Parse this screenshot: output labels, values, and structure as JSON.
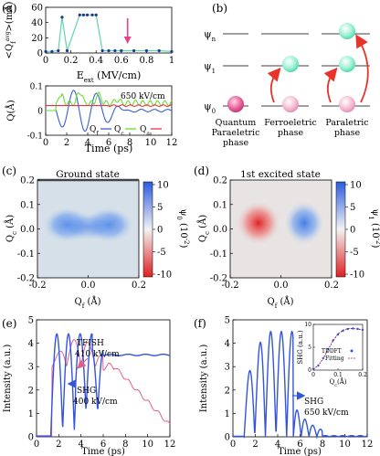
{
  "labels": {
    "a": "(a)",
    "b": "(b)",
    "c": "(c)",
    "d": "(d)",
    "e": "(e)",
    "f": "(f)"
  },
  "panel_b": {
    "psi_n": "ψn",
    "psi_1": "ψ1",
    "psi_0": "ψ0",
    "phases": [
      {
        "line1": "Quantum",
        "line2": "Paraeletric",
        "line3": "phase"
      },
      {
        "line1": "Ferroeletric",
        "line2": "phase"
      },
      {
        "line1": "Paraletric",
        "line2": "phase"
      }
    ],
    "colors": {
      "ground": "#e65a94",
      "excited": "#56e0b4",
      "arrow": "#e8332a"
    }
  },
  "panel_c": {
    "title": "Ground state",
    "cbar_label": "ψ0 (10⁻²)"
  },
  "panel_d": {
    "title": "1st excited state",
    "cbar_label": "ψ1 (10⁻²)"
  },
  "chart_data": [
    {
      "panel": "a-top",
      "type": "line",
      "xlabel": "Eext (MV/cm)",
      "ylabel": "<Qf_avg> (mÅ)",
      "xlim": [
        0,
        1.0
      ],
      "ylim": [
        0,
        60
      ],
      "xticks": [
        0,
        0.2,
        0.4,
        0.6,
        0.8,
        1.0
      ],
      "yticks": [
        0,
        20,
        40,
        60
      ],
      "x": [
        0.0,
        0.05,
        0.1,
        0.13,
        0.17,
        0.27,
        0.3,
        0.33,
        0.37,
        0.4,
        0.45,
        0.5,
        0.55,
        0.6,
        0.7,
        0.8,
        0.9,
        1.0
      ],
      "values": [
        2,
        2,
        3,
        47,
        3,
        50,
        50,
        50,
        50,
        50,
        3,
        3,
        3,
        3,
        3,
        3,
        3,
        2
      ],
      "arrow_x": 0.65,
      "colors": {
        "line": "#5fd3b3",
        "marker": "#1f3a93",
        "arrow": "#e6418a"
      }
    },
    {
      "panel": "a-bottom",
      "type": "line",
      "xlabel": "Time (ps)",
      "ylabel": "Q(Å)",
      "xlim": [
        0,
        12
      ],
      "ylim": [
        -0.1,
        0.1
      ],
      "xticks": [
        0,
        2,
        4,
        6,
        8,
        10,
        12
      ],
      "yticks": [
        -0.1,
        0.0,
        0.1
      ],
      "annotation": "650 kV/cm",
      "legend": {
        "items": [
          "Qf",
          "Qc",
          "Qa"
        ],
        "position": "bottom-right"
      },
      "series": [
        {
          "name": "Qf",
          "color": "#3a5fcd"
        },
        {
          "name": "Qc",
          "color": "#66dd33"
        },
        {
          "name": "Qa",
          "color": "#e8334a"
        }
      ]
    },
    {
      "panel": "c",
      "type": "heatmap",
      "xlabel": "Qf (Å)",
      "ylabel": "Qc (Å)",
      "xlim": [
        -0.2,
        0.2
      ],
      "ylim": [
        -0.2,
        0.2
      ],
      "xticks": [
        -0.2,
        0.0,
        0.2
      ],
      "yticks": [
        -0.2,
        -0.1,
        0.0,
        0.1,
        0.2
      ],
      "cbar_ticks": [
        10,
        5,
        0,
        -5,
        -10
      ]
    },
    {
      "panel": "d",
      "type": "heatmap",
      "xlabel": "Qf (Å)",
      "ylabel": "Qc (Å)",
      "xlim": [
        -0.2,
        0.2
      ],
      "ylim": [
        -0.2,
        0.2
      ],
      "xticks": [
        -0.2,
        0.0,
        0.2
      ],
      "yticks": [
        -0.2,
        -0.1,
        0.0,
        0.1,
        0.2
      ],
      "cbar_ticks": [
        10,
        5,
        0,
        -5,
        -10
      ]
    },
    {
      "panel": "e",
      "type": "line",
      "xlabel": "Time (ps)",
      "ylabel": "Intensity (a.u.)",
      "xlim": [
        0,
        12
      ],
      "ylim": [
        0,
        5
      ],
      "xticks": [
        0,
        2,
        4,
        6,
        8,
        10,
        12
      ],
      "yticks": [
        0,
        1,
        2,
        3,
        4,
        5
      ],
      "series": [
        {
          "name": "TFISH",
          "sub": "410 kV/cm",
          "color": "#e0608a"
        },
        {
          "name": "SHG",
          "sub": "400 kV/cm",
          "color": "#3355dd"
        }
      ]
    },
    {
      "panel": "f",
      "type": "line",
      "xlabel": "Time (ps)",
      "ylabel": "Intensity (a.u.)",
      "xlim": [
        0,
        12
      ],
      "ylim": [
        0,
        5
      ],
      "xticks": [
        0,
        2,
        4,
        6,
        8,
        10,
        12
      ],
      "yticks": [
        0,
        1,
        2,
        3,
        4,
        5
      ],
      "series": [
        {
          "name": "SHG",
          "sub": "650 kV/cm",
          "color": "#3355dd"
        }
      ],
      "inset": {
        "xlabel": "Qc (Å)",
        "ylabel": "SHG (a.u.)",
        "xlim": [
          0,
          0.2
        ],
        "ylim": [
          0,
          10
        ],
        "xticks": [
          0,
          0.1,
          0.2
        ],
        "yticks": [
          0,
          5,
          10
        ],
        "legend": [
          "TDDFT",
          "Fitting"
        ],
        "x": [
          0.0,
          0.02,
          0.04,
          0.06,
          0.08,
          0.1,
          0.12,
          0.14,
          0.16,
          0.18,
          0.2
        ],
        "tddft": [
          0.2,
          1.0,
          2.6,
          4.6,
          6.5,
          7.8,
          8.6,
          9.0,
          9.1,
          9.0,
          8.8
        ],
        "fitting": [
          0.2,
          1.0,
          2.5,
          4.5,
          6.4,
          7.9,
          8.7,
          9.1,
          9.1,
          9.0,
          8.8
        ],
        "colors": {
          "tddft": "#3355dd",
          "fitting": "#9a2a6a"
        }
      }
    }
  ]
}
